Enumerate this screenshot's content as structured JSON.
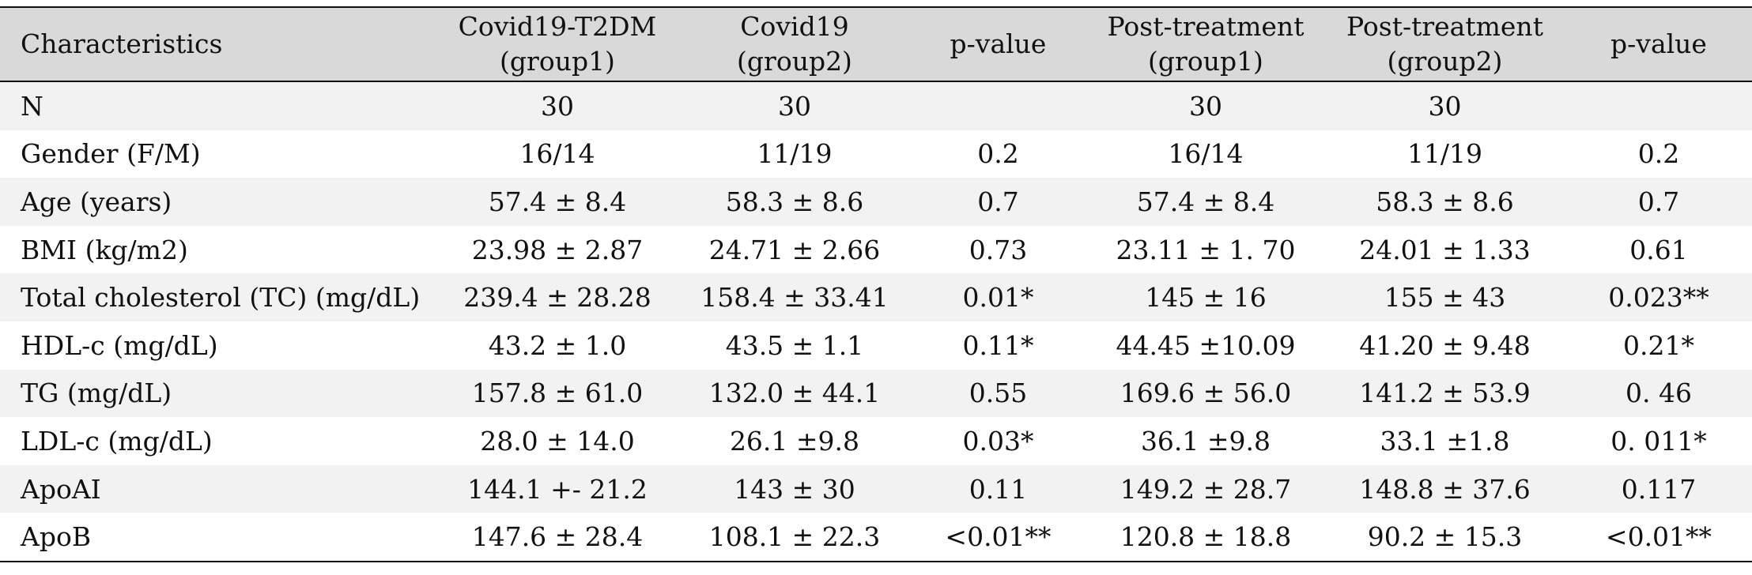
{
  "table": {
    "headers": [
      {
        "line1": "Characteristics",
        "line2": ""
      },
      {
        "line1": "Covid19-T2DM",
        "line2": "(group1)"
      },
      {
        "line1": "Covid19",
        "line2": "(group2)"
      },
      {
        "line1": "p-value",
        "line2": ""
      },
      {
        "line1": "Post-treatment",
        "line2": "(group1)"
      },
      {
        "line1": "Post-treatment",
        "line2": "(group2)"
      },
      {
        "line1": "p-value",
        "line2": ""
      }
    ],
    "rows": [
      [
        "N",
        "30",
        "30",
        "",
        "30",
        "30",
        ""
      ],
      [
        "Gender (F/M)",
        "16/14",
        "11/19",
        "0.2",
        "16/14",
        "11/19",
        "0.2"
      ],
      [
        "Age (years)",
        "57.4 ± 8.4",
        "58.3 ± 8.6",
        "0.7",
        "57.4 ± 8.4",
        "58.3 ± 8.6",
        "0.7"
      ],
      [
        "BMI (kg/m2)",
        "23.98 ± 2.87",
        "24.71 ± 2.66",
        "0.73",
        "23.11 ± 1. 70",
        "24.01 ± 1.33",
        "0.61"
      ],
      [
        "Total cholesterol (TC) (mg/dL)",
        "239.4 ± 28.28",
        "158.4 ± 33.41",
        "0.01*",
        "145 ± 16",
        "155 ± 43",
        "0.023**"
      ],
      [
        "HDL-c (mg/dL)",
        "43.2 ± 1.0",
        "43.5 ± 1.1",
        "0.11*",
        "44.45 ±10.09",
        "41.20 ± 9.48",
        "0.21*"
      ],
      [
        "TG (mg/dL)",
        "157.8 ± 61.0",
        "132.0 ± 44.1",
        "0.55",
        "169.6 ± 56.0",
        "141.2 ± 53.9",
        "0. 46"
      ],
      [
        "LDL-c (mg/dL)",
        "28.0 ± 14.0",
        "26.1 ±9.8",
        "0.03*",
        "36.1 ±9.8",
        "33.1 ±1.8",
        "0. 011*"
      ],
      [
        "ApoAI",
        "144.1 +- 21.2",
        "143 ± 30",
        "0.11",
        "149.2 ± 28.7",
        "148.8 ± 37.6",
        "0.117"
      ],
      [
        "ApoB",
        "147.6 ± 28.4",
        "108.1 ± 22.3",
        "<0.01**",
        "120.8 ± 18.8",
        "90.2 ± 15.3",
        "<0.01**"
      ]
    ]
  }
}
